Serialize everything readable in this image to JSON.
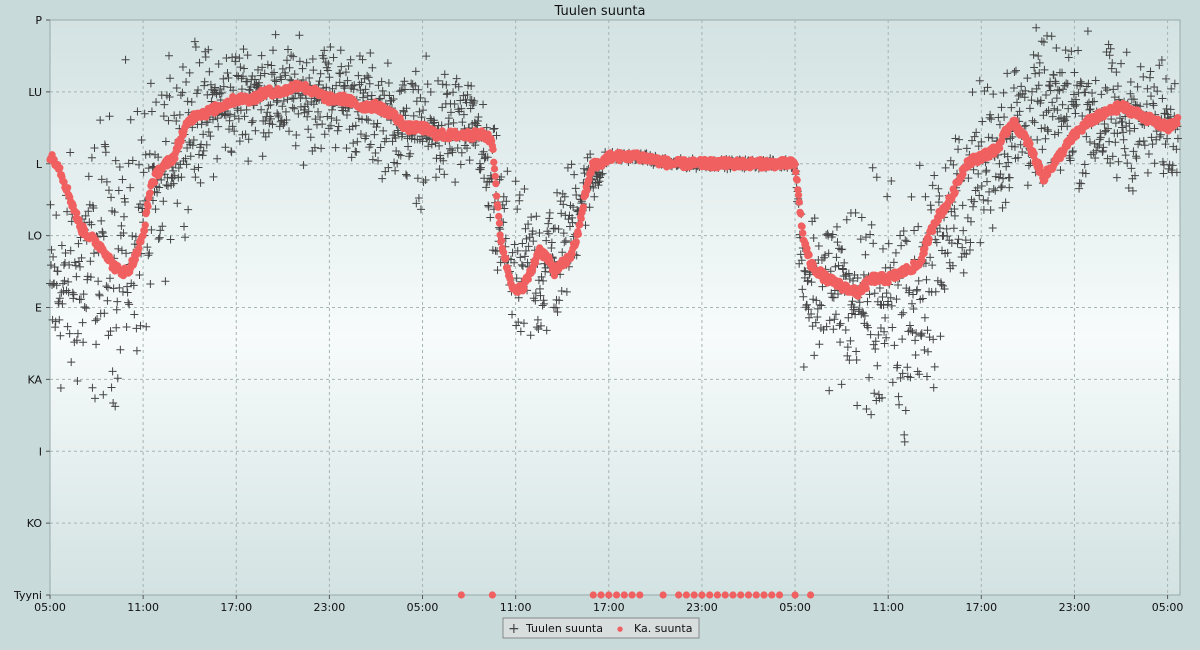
{
  "chart_data": {
    "type": "scatter",
    "title": "Tuulen suunta",
    "xlabel": "",
    "ylabel": "",
    "x_ticks": [
      "05:00",
      "11:00",
      "17:00",
      "23:00",
      "05:00",
      "11:00",
      "17:00",
      "23:00",
      "05:00",
      "11:00",
      "17:00",
      "23:00",
      "05:00"
    ],
    "x_tick_hours": [
      0,
      6,
      12,
      18,
      24,
      30,
      36,
      42,
      48,
      54,
      60,
      66,
      72
    ],
    "xlim_hours": [
      0,
      72.8
    ],
    "y_ticks": [
      "P",
      "LU",
      "L",
      "LO",
      "E",
      "KA",
      "I",
      "KO",
      "Tyyni"
    ],
    "ylim": [
      0,
      8
    ],
    "grid": true,
    "legend_position": "bottom-center",
    "colors": {
      "tuulen": "#444444",
      "ka": "#f06060"
    },
    "series": [
      {
        "name": "Tuulen suunta",
        "marker": "plus",
        "color": "#444444",
        "segments": [
          [
            0,
            4.2,
            1.2
          ],
          [
            3,
            4.6,
            1.5
          ],
          [
            5,
            4.9,
            1.6
          ],
          [
            7,
            5.5,
            1.1
          ],
          [
            8,
            6.4,
            1.0
          ],
          [
            10,
            6.7,
            0.7
          ],
          [
            13,
            7.0,
            0.6
          ],
          [
            16,
            6.9,
            0.6
          ],
          [
            18,
            7.0,
            0.6
          ],
          [
            20,
            6.8,
            0.6
          ],
          [
            22,
            6.6,
            0.6
          ],
          [
            24,
            6.4,
            0.7
          ],
          [
            26,
            6.5,
            0.7
          ],
          [
            27.5,
            6.5,
            0.4
          ],
          [
            28.5,
            5.5,
            0.8
          ],
          [
            30,
            4.4,
            0.9
          ],
          [
            32,
            4.6,
            0.9
          ],
          [
            33,
            4.8,
            0.8
          ],
          [
            34,
            5.5,
            0.6
          ],
          [
            35,
            5.8,
            0.3
          ],
          [
            36,
            6.1,
            0.05
          ],
          [
            38,
            6.1,
            0.05
          ],
          [
            40,
            6.0,
            0.05
          ],
          [
            46,
            6.0,
            0.05
          ],
          [
            48,
            6.0,
            0.05
          ],
          [
            48.5,
            4.4,
            0.8
          ],
          [
            51,
            4.2,
            1.0
          ],
          [
            55,
            3.8,
            1.6
          ],
          [
            57,
            4.6,
            1.1
          ],
          [
            58,
            5.2,
            0.9
          ],
          [
            60,
            6.0,
            0.9
          ],
          [
            62,
            6.5,
            0.8
          ],
          [
            64,
            6.8,
            0.8
          ],
          [
            66,
            6.8,
            0.8
          ],
          [
            68,
            6.6,
            0.8
          ],
          [
            70,
            6.6,
            0.7
          ],
          [
            72.7,
            6.5,
            0.6
          ]
        ]
      },
      {
        "name": "Ka. suunta",
        "marker": "dot",
        "color": "#f06060",
        "points": [
          [
            0,
            6.1
          ],
          [
            0.5,
            6.0
          ],
          [
            1,
            5.7
          ],
          [
            1.5,
            5.4
          ],
          [
            2,
            5.1
          ],
          [
            2.5,
            5.0
          ],
          [
            3,
            4.9
          ],
          [
            3.5,
            4.8
          ],
          [
            4,
            4.6
          ],
          [
            4.5,
            4.5
          ],
          [
            5,
            4.5
          ],
          [
            5.5,
            4.7
          ],
          [
            6,
            5.0
          ],
          [
            6.5,
            5.7
          ],
          [
            7,
            5.9
          ],
          [
            7.5,
            6.0
          ],
          [
            8,
            6.1
          ],
          [
            8.5,
            6.4
          ],
          [
            9,
            6.6
          ],
          [
            9.5,
            6.7
          ],
          [
            10,
            6.7
          ],
          [
            11,
            6.8
          ],
          [
            12,
            6.9
          ],
          [
            13,
            6.9
          ],
          [
            14,
            7.0
          ],
          [
            15,
            7.0
          ],
          [
            16,
            7.1
          ],
          [
            17,
            7.0
          ],
          [
            18,
            6.9
          ],
          [
            19,
            6.9
          ],
          [
            20,
            6.8
          ],
          [
            21,
            6.8
          ],
          [
            22,
            6.7
          ],
          [
            23,
            6.5
          ],
          [
            24,
            6.5
          ],
          [
            25,
            6.4
          ],
          [
            26,
            6.4
          ],
          [
            27,
            6.4
          ],
          [
            27.5,
            6.4
          ],
          [
            28,
            6.4
          ],
          [
            28.5,
            6.3
          ],
          [
            29,
            5.0
          ],
          [
            29.5,
            4.5
          ],
          [
            30,
            4.2
          ],
          [
            30.5,
            4.3
          ],
          [
            31,
            4.5
          ],
          [
            31.5,
            4.8
          ],
          [
            32,
            4.7
          ],
          [
            32.5,
            4.5
          ],
          [
            33,
            4.6
          ],
          [
            33.5,
            4.7
          ],
          [
            34,
            5.0
          ],
          [
            34.5,
            5.6
          ],
          [
            35,
            6.0
          ],
          [
            35.5,
            6.0
          ],
          [
            36,
            6.1
          ],
          [
            38,
            6.1
          ],
          [
            40,
            6.0
          ],
          [
            44,
            6.0
          ],
          [
            46,
            6.0
          ],
          [
            48,
            6.0
          ],
          [
            48.5,
            5.0
          ],
          [
            49,
            4.6
          ],
          [
            50,
            4.4
          ],
          [
            51,
            4.3
          ],
          [
            52,
            4.2
          ],
          [
            53,
            4.4
          ],
          [
            54,
            4.4
          ],
          [
            55,
            4.5
          ],
          [
            56,
            4.6
          ],
          [
            57,
            5.2
          ],
          [
            58,
            5.5
          ],
          [
            59,
            6.0
          ],
          [
            60,
            6.1
          ],
          [
            61,
            6.2
          ],
          [
            62,
            6.6
          ],
          [
            63,
            6.3
          ],
          [
            64,
            5.8
          ],
          [
            65,
            6.1
          ],
          [
            66,
            6.4
          ],
          [
            67,
            6.6
          ],
          [
            68,
            6.7
          ],
          [
            69,
            6.8
          ],
          [
            70,
            6.7
          ],
          [
            71,
            6.6
          ],
          [
            72,
            6.5
          ],
          [
            72.7,
            6.6
          ]
        ],
        "calm_points": [
          [
            26.5,
            0
          ],
          [
            28.5,
            0
          ],
          [
            35,
            0
          ],
          [
            35.5,
            0
          ],
          [
            36,
            0
          ],
          [
            36.5,
            0
          ],
          [
            37,
            0
          ],
          [
            37.5,
            0
          ],
          [
            38,
            0
          ],
          [
            39.5,
            0
          ],
          [
            40.5,
            0
          ],
          [
            41,
            0
          ],
          [
            41.5,
            0
          ],
          [
            42,
            0
          ],
          [
            42.5,
            0
          ],
          [
            43,
            0
          ],
          [
            43.5,
            0
          ],
          [
            44,
            0
          ],
          [
            44.5,
            0
          ],
          [
            45,
            0
          ],
          [
            45.5,
            0
          ],
          [
            46,
            0
          ],
          [
            46.5,
            0
          ],
          [
            47,
            0
          ],
          [
            48,
            0
          ],
          [
            49,
            0
          ]
        ]
      }
    ]
  },
  "legend": {
    "items": [
      {
        "label": "Tuulen suunta",
        "marker": "+"
      },
      {
        "label": "Ka. suunta",
        "marker": "●"
      }
    ]
  }
}
